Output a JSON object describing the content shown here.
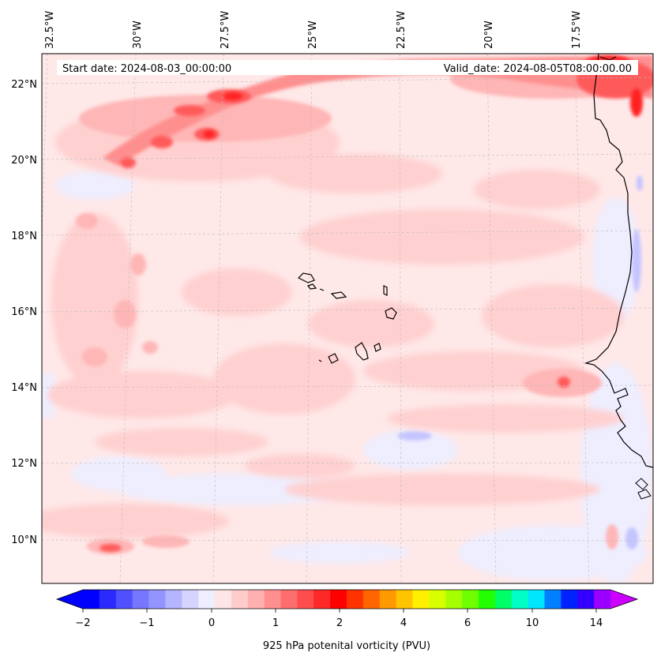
{
  "header": {
    "start_date": "Start date: 2024-08-03_00:00:00",
    "valid_date": "Valid_date: 2024-08-05T08:00:00.00"
  },
  "axes": {
    "lon_labels": [
      "32.5°W",
      "30°W",
      "27.5°W",
      "25°W",
      "22.5°W",
      "20°W",
      "17.5°W"
    ],
    "lat_labels": [
      "22°N",
      "20°N",
      "18°N",
      "16°N",
      "14°N",
      "12°N",
      "10°N"
    ]
  },
  "colorbar": {
    "label": "925 hPa potenital vorticity (PVU)",
    "ticks": [
      "−2",
      "−1",
      "0",
      "1",
      "2",
      "4",
      "6",
      "10",
      "14"
    ],
    "colors": [
      "#0000ff",
      "#2a2aff",
      "#5050ff",
      "#7676ff",
      "#9494ff",
      "#b4b4ff",
      "#d4d4ff",
      "#eeeeff",
      "#ffe6e6",
      "#ffcccc",
      "#ffb0b0",
      "#ff8f8f",
      "#ff6e6e",
      "#ff4c4c",
      "#ff2828",
      "#ff0000",
      "#ff3300",
      "#ff6600",
      "#ff9900",
      "#ffc400",
      "#fff000",
      "#d8ff00",
      "#a6ff00",
      "#6eff00",
      "#22ff00",
      "#00ff66",
      "#00ffc4",
      "#00e6ff",
      "#0080ff",
      "#0022ff",
      "#3300ff",
      "#9900ff"
    ],
    "extend_low_color": "#0000ff",
    "extend_high_color": "#cc00ff"
  },
  "field_colors": {
    "background": "#ffe8e8",
    "light": "#ffd0d0",
    "medium": "#ffb6b6",
    "strong": "#ff6e6e",
    "max": "#ff2a2a",
    "negative": "#eeeeff",
    "negative_strong": "#c4c4ff"
  }
}
